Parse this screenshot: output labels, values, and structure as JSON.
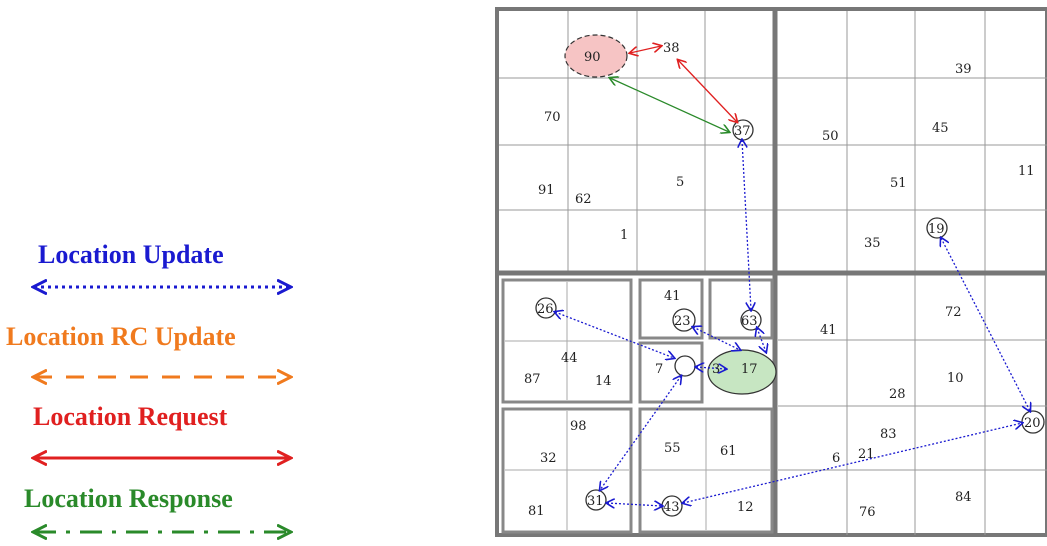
{
  "legend": {
    "update": {
      "label": "Location Update",
      "color": "#1a1ad0",
      "style": "dotted"
    },
    "rc_update": {
      "label": "Location RC Update",
      "color": "#f07a1e",
      "style": "dashed"
    },
    "request": {
      "label": "Location Request",
      "color": "#e02020",
      "style": "solid"
    },
    "response": {
      "label": "Location Response",
      "color": "#2a8a2a",
      "style": "dashdot"
    }
  },
  "grid": {
    "numbers": [
      "90",
      "38",
      "39",
      "70",
      "37",
      "50",
      "45",
      "91",
      "62",
      "5",
      "51",
      "11",
      "1",
      "19",
      "35",
      "26",
      "41",
      "23",
      "63",
      "41",
      "72",
      "7",
      "3",
      "17",
      "87",
      "44",
      "14",
      "10",
      "28",
      "98",
      "55",
      "61",
      "83",
      "20",
      "32",
      "6",
      "21",
      "81",
      "31",
      "43",
      "12",
      "76",
      "84"
    ]
  }
}
